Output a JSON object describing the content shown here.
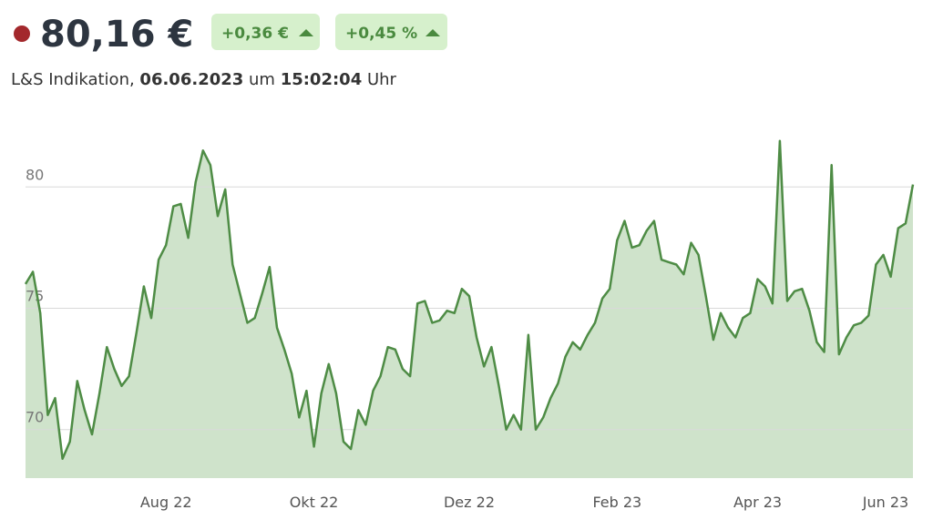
{
  "header": {
    "price": "80,16 €",
    "change_abs": "+0,36 €",
    "change_pct": "+0,45 %",
    "source": "L&S Indikation, ",
    "date": "06.06.2023",
    "um": " um ",
    "time": "15:02:04",
    "uhr": " Uhr"
  },
  "chart_data": {
    "type": "area",
    "color": "#4e8c45",
    "fill": "#cfe3cb",
    "grid": true,
    "ylim": [
      68,
      82
    ],
    "yticks": [
      70,
      75,
      80
    ],
    "categories": [
      null,
      null,
      null,
      null,
      null,
      null,
      null,
      null,
      null,
      null,
      null,
      null,
      null,
      null,
      null,
      null,
      null,
      null,
      null,
      "Aug 22",
      null,
      null,
      null,
      null,
      null,
      null,
      null,
      null,
      null,
      null,
      null,
      null,
      null,
      null,
      null,
      null,
      null,
      null,
      null,
      "Okt 22",
      null,
      null,
      null,
      null,
      null,
      null,
      null,
      null,
      null,
      null,
      null,
      null,
      null,
      null,
      null,
      null,
      null,
      null,
      null,
      null,
      "Dez 22",
      null,
      null,
      null,
      null,
      null,
      null,
      null,
      null,
      null,
      null,
      null,
      null,
      null,
      null,
      null,
      null,
      null,
      null,
      null,
      "Feb 23",
      null,
      null,
      null,
      null,
      null,
      null,
      null,
      null,
      null,
      null,
      null,
      null,
      null,
      null,
      null,
      null,
      null,
      null,
      "Apr 23",
      null,
      null,
      null,
      null,
      null,
      null,
      null,
      null,
      null,
      null,
      null,
      null,
      null,
      null,
      null,
      null,
      null,
      "Jun 23",
      null,
      null,
      null
    ],
    "values": [
      76.0,
      76.5,
      74.8,
      70.6,
      71.3,
      68.8,
      69.5,
      72.0,
      70.8,
      69.8,
      71.5,
      73.4,
      72.5,
      71.8,
      72.2,
      74.0,
      75.9,
      74.6,
      77.0,
      77.6,
      79.2,
      79.3,
      77.9,
      80.2,
      81.5,
      80.9,
      78.8,
      79.9,
      76.8,
      75.6,
      74.4,
      74.6,
      75.6,
      76.7,
      74.2,
      73.3,
      72.3,
      70.5,
      71.6,
      69.3,
      71.5,
      72.7,
      71.5,
      69.5,
      69.2,
      70.8,
      70.2,
      71.6,
      72.2,
      73.4,
      73.3,
      72.5,
      72.2,
      75.2,
      75.3,
      74.4,
      74.5,
      74.9,
      74.8,
      75.8,
      75.5,
      73.8,
      72.6,
      73.4,
      71.8,
      70.0,
      70.6,
      70.0,
      73.9,
      70.0,
      70.5,
      71.3,
      71.9,
      73.0,
      73.6,
      73.3,
      73.9,
      74.4,
      75.4,
      75.8,
      77.8,
      78.6,
      77.5,
      77.6,
      78.2,
      78.6,
      77.0,
      76.9,
      76.8,
      76.4,
      77.7,
      77.2,
      75.5,
      73.7,
      74.8,
      74.2,
      73.8,
      74.6,
      74.8,
      76.2,
      75.9,
      75.2,
      81.9,
      75.3,
      75.7,
      75.8,
      74.9,
      73.6,
      73.2,
      80.9,
      73.1,
      73.8,
      74.3,
      74.4,
      74.7,
      76.8,
      77.2,
      76.3,
      78.3,
      78.5,
      80.1
    ]
  }
}
